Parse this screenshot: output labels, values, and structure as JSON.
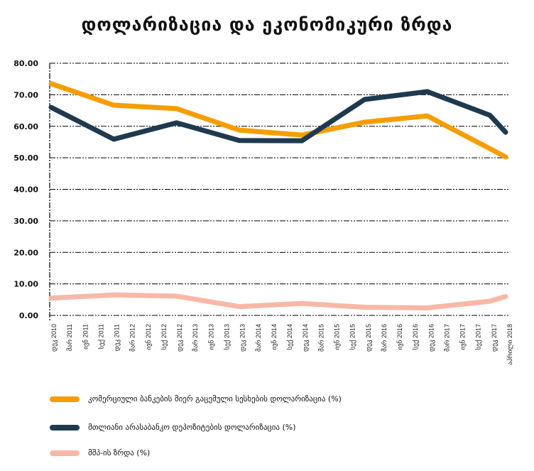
{
  "chart_data": {
    "type": "line",
    "title": "დოლარიზაცია და ეკონომიკური ზრდა",
    "xlabel": "",
    "ylabel": "",
    "ylim": [
      0,
      80
    ],
    "yticks": [
      "0.00",
      "10.00",
      "20.00",
      "30.00",
      "40.00",
      "50.00",
      "60.00",
      "70.00",
      "80.00"
    ],
    "grid": true,
    "legend_position": "bottom",
    "categories": [
      "დეკ 2010",
      "მარ 2011",
      "ივნ 2011",
      "სექ 2011",
      "დეკ 2011",
      "მარ 2012",
      "ივნ 2012",
      "სექ 2012",
      "დეკ 2012",
      "მარ 2013",
      "ივნ 2013",
      "სექ 2013",
      "დეკ 2013",
      "მარ 2014",
      "ივნ 2014",
      "სექ 2014",
      "დეკ 2014",
      "მარ 2015",
      "ივნ 2015",
      "სექ 2015",
      "დეკ 2015",
      "მარ 2016",
      "ივნ 2016",
      "სექ 2016",
      "დეკ 2016",
      "მარ 2017",
      "ივნ 2017",
      "სექ 2017",
      "დეკ 2017",
      "აპრილი 2018"
    ],
    "series": [
      {
        "name": "კომერციული ბანკების მიერ გაცემული სესხების დოლარიზაცია (%)",
        "color": "#F59E00",
        "points": [
          [
            0,
            73.5
          ],
          [
            4,
            66.7
          ],
          [
            8,
            65.6
          ],
          [
            12,
            58.8
          ],
          [
            16,
            57.2
          ],
          [
            20,
            61.3
          ],
          [
            24,
            63.3
          ],
          [
            29,
            50.3
          ]
        ]
      },
      {
        "name": "მთლიანი არასაბანკო დეპოზიტების დოლარიზაცია (%)",
        "color": "#1F3A4F",
        "points": [
          [
            0,
            66.0
          ],
          [
            4,
            55.9
          ],
          [
            8,
            61.1
          ],
          [
            12,
            55.5
          ],
          [
            16,
            55.4
          ],
          [
            20,
            68.5
          ],
          [
            24,
            71.0
          ],
          [
            28,
            63.5
          ],
          [
            29,
            58.1
          ]
        ]
      },
      {
        "name": "მშპ-ის ზრდა (%)",
        "color": "#F7B8A8",
        "points": [
          [
            0,
            5.5
          ],
          [
            4,
            6.5
          ],
          [
            8,
            6.1
          ],
          [
            12,
            2.8
          ],
          [
            16,
            3.8
          ],
          [
            20,
            2.6
          ],
          [
            24,
            2.4
          ],
          [
            28,
            4.5
          ],
          [
            29,
            6.0
          ]
        ]
      }
    ]
  }
}
